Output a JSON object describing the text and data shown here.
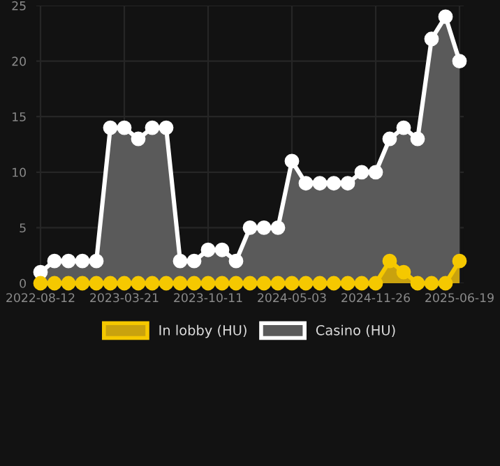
{
  "chart_data": {
    "type": "area",
    "categories": [
      "2022-08-12",
      null,
      null,
      null,
      null,
      null,
      "2023-03-21",
      null,
      null,
      null,
      null,
      null,
      "2023-10-11",
      null,
      null,
      null,
      null,
      null,
      "2024-05-03",
      null,
      null,
      null,
      null,
      null,
      "2024-11-26",
      null,
      null,
      null,
      null,
      null,
      "2025-06-19"
    ],
    "series": [
      {
        "name": "In lobby (HU)",
        "color": "#f5c800",
        "values": [
          0,
          0,
          0,
          0,
          0,
          0,
          0,
          0,
          0,
          0,
          0,
          0,
          0,
          0,
          0,
          0,
          0,
          0,
          0,
          0,
          0,
          0,
          0,
          0,
          0,
          2,
          1,
          0,
          0,
          0,
          2
        ]
      },
      {
        "name": "Casino (HU)",
        "color": "#ffffff",
        "values": [
          1,
          2,
          2,
          2,
          2,
          14,
          14,
          13,
          14,
          14,
          2,
          2,
          3,
          3,
          2,
          5,
          5,
          5,
          11,
          9,
          9,
          9,
          9,
          10,
          10,
          13,
          14,
          13,
          22,
          24,
          20
        ]
      }
    ],
    "ylim": [
      0,
      25
    ],
    "yticks": [
      0,
      5,
      10,
      15,
      20,
      25
    ],
    "grid": true,
    "legend": "bottom",
    "marker": "circle",
    "line_style": "solid"
  }
}
